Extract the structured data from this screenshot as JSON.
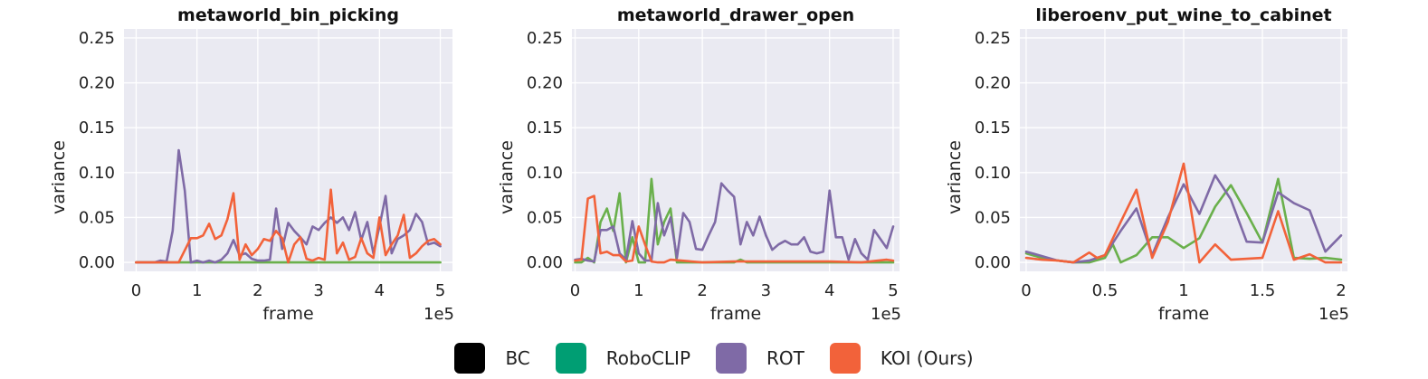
{
  "colors": {
    "BC": "#000000",
    "RoboCLIP": "#009e73",
    "ROT": "#7f6aa6",
    "KOI (Ours)": "#f2623a"
  },
  "legend": {
    "items": [
      {
        "name": "BC",
        "color": "#000000"
      },
      {
        "name": "RoboCLIP",
        "color": "#009e73"
      },
      {
        "name": "ROT",
        "color": "#7f6aa6"
      },
      {
        "name": "KOI (Ours)",
        "color": "#f2623a"
      }
    ]
  },
  "chart_data": [
    {
      "type": "line",
      "title": "metaworld_bin_picking",
      "xlabel": "frame",
      "ylabel": "variance",
      "x_multiplier": "1e5",
      "xlim": [
        -0.2,
        5.2
      ],
      "ylim": [
        -0.01,
        0.26
      ],
      "xticks": [
        0,
        1,
        2,
        3,
        4,
        5
      ],
      "xtick_labels": [
        "0",
        "1",
        "2",
        "3",
        "4",
        "5"
      ],
      "yticks": [
        0.0,
        0.05,
        0.1,
        0.15,
        0.2,
        0.25
      ],
      "ytick_labels": [
        "0.00",
        "0.05",
        "0.10",
        "0.15",
        "0.20",
        "0.25"
      ],
      "grid": true,
      "series": [
        {
          "name": "RoboCLIP",
          "color": "#6ab04c",
          "x": [
            0,
            1,
            2,
            3,
            4,
            5
          ],
          "y": [
            0,
            0,
            0,
            0,
            0,
            0
          ]
        },
        {
          "name": "ROT",
          "color": "#7f6aa6",
          "x": [
            0,
            0.3,
            0.4,
            0.5,
            0.6,
            0.7,
            0.8,
            0.9,
            1.0,
            1.1,
            1.2,
            1.3,
            1.4,
            1.5,
            1.6,
            1.7,
            1.8,
            1.9,
            2.0,
            2.1,
            2.2,
            2.3,
            2.4,
            2.5,
            2.6,
            2.7,
            2.8,
            2.9,
            3.0,
            3.1,
            3.2,
            3.3,
            3.4,
            3.5,
            3.6,
            3.7,
            3.8,
            3.9,
            4.0,
            4.1,
            4.2,
            4.3,
            4.4,
            4.5,
            4.6,
            4.7,
            4.8,
            4.9,
            5.0
          ],
          "y": [
            0,
            0,
            0.002,
            0.001,
            0.035,
            0.125,
            0.08,
            0,
            0.002,
            0,
            0.002,
            0,
            0.003,
            0.01,
            0.025,
            0.008,
            0.01,
            0.004,
            0.002,
            0.002,
            0.003,
            0.06,
            0.015,
            0.044,
            0.035,
            0.028,
            0.02,
            0.04,
            0.036,
            0.044,
            0.05,
            0.044,
            0.05,
            0.036,
            0.056,
            0.025,
            0.045,
            0.01,
            0.04,
            0.074,
            0.01,
            0.026,
            0.03,
            0.036,
            0.054,
            0.045,
            0.02,
            0.022,
            0.018
          ]
        },
        {
          "name": "KOI (Ours)",
          "color": "#f2623a",
          "x": [
            0,
            0.5,
            0.7,
            0.9,
            1.0,
            1.1,
            1.2,
            1.3,
            1.4,
            1.5,
            1.6,
            1.7,
            1.8,
            1.9,
            2.0,
            2.1,
            2.2,
            2.3,
            2.4,
            2.5,
            2.6,
            2.7,
            2.8,
            2.9,
            3.0,
            3.1,
            3.2,
            3.3,
            3.4,
            3.5,
            3.6,
            3.7,
            3.8,
            3.9,
            4.0,
            4.1,
            4.2,
            4.3,
            4.4,
            4.5,
            4.6,
            4.7,
            4.8,
            4.9,
            5.0
          ],
          "y": [
            0,
            0,
            0,
            0.027,
            0.027,
            0.03,
            0.043,
            0.026,
            0.03,
            0.048,
            0.077,
            0.003,
            0.02,
            0.008,
            0.015,
            0.026,
            0.024,
            0.035,
            0.027,
            0,
            0.02,
            0.028,
            0.004,
            0.002,
            0.005,
            0.003,
            0.081,
            0.01,
            0.022,
            0.003,
            0.006,
            0.027,
            0.01,
            0.005,
            0.05,
            0.008,
            0.02,
            0.03,
            0.053,
            0.005,
            0.01,
            0.018,
            0.024,
            0.026,
            0.02
          ]
        }
      ]
    },
    {
      "type": "line",
      "title": "metaworld_drawer_open",
      "xlabel": "frame",
      "ylabel": "variance",
      "x_multiplier": "1e5",
      "xlim": [
        -0.05,
        5.1
      ],
      "ylim": [
        -0.01,
        0.26
      ],
      "xticks": [
        0,
        1,
        2,
        3,
        4,
        5
      ],
      "xtick_labels": [
        "0",
        "1",
        "2",
        "3",
        "4",
        "5"
      ],
      "yticks": [
        0.0,
        0.05,
        0.1,
        0.15,
        0.2,
        0.25
      ],
      "ytick_labels": [
        "0.00",
        "0.05",
        "0.10",
        "0.15",
        "0.20",
        "0.25"
      ],
      "grid": true,
      "series": [
        {
          "name": "RoboCLIP",
          "color": "#6ab04c",
          "x": [
            0,
            0.1,
            0.2,
            0.3,
            0.4,
            0.5,
            0.6,
            0.7,
            0.8,
            0.9,
            1.0,
            1.1,
            1.2,
            1.3,
            1.4,
            1.5,
            1.6,
            1.7,
            1.8,
            1.9,
            2.0,
            2.5,
            2.6,
            2.7,
            3.0,
            3.5,
            4.0,
            4.5,
            5.0
          ],
          "y": [
            0,
            0,
            0.005,
            0,
            0.045,
            0.06,
            0.035,
            0.077,
            0,
            0.028,
            0,
            0,
            0.093,
            0.02,
            0.045,
            0.06,
            0,
            0,
            0,
            0,
            0,
            0,
            0.003,
            0,
            0,
            0,
            0,
            0,
            0
          ]
        },
        {
          "name": "ROT",
          "color": "#7f6aa6",
          "x": [
            0,
            0.1,
            0.2,
            0.3,
            0.4,
            0.5,
            0.6,
            0.7,
            0.8,
            0.9,
            1.0,
            1.1,
            1.2,
            1.3,
            1.4,
            1.5,
            1.6,
            1.7,
            1.8,
            1.9,
            2.0,
            2.1,
            2.2,
            2.3,
            2.4,
            2.5,
            2.6,
            2.7,
            2.8,
            2.9,
            3.0,
            3.1,
            3.2,
            3.3,
            3.4,
            3.5,
            3.6,
            3.7,
            3.8,
            3.9,
            4.0,
            4.1,
            4.2,
            4.3,
            4.4,
            4.5,
            4.6,
            4.7,
            4.8,
            4.9,
            5.0
          ],
          "y": [
            0.003,
            0.004,
            0.002,
            0.001,
            0.036,
            0.036,
            0.04,
            0.01,
            0.003,
            0.046,
            0.01,
            0.002,
            0.002,
            0.066,
            0.03,
            0.05,
            0.005,
            0.055,
            0.045,
            0.015,
            0.014,
            0.03,
            0.045,
            0.088,
            0.08,
            0.073,
            0.02,
            0.045,
            0.03,
            0.051,
            0.03,
            0.014,
            0.02,
            0.024,
            0.02,
            0.02,
            0.028,
            0.012,
            0.01,
            0.012,
            0.08,
            0.028,
            0.028,
            0.003,
            0.026,
            0.01,
            0.003,
            0.036,
            0.026,
            0.016,
            0.04
          ]
        },
        {
          "name": "KOI (Ours)",
          "color": "#f2623a",
          "x": [
            0,
            0.1,
            0.2,
            0.3,
            0.4,
            0.5,
            0.6,
            0.7,
            0.8,
            0.9,
            1.0,
            1.1,
            1.2,
            1.3,
            1.4,
            1.5,
            2.0,
            2.5,
            3.0,
            3.5,
            4.0,
            4.5,
            4.9,
            5.0
          ],
          "y": [
            0.002,
            0.003,
            0.071,
            0.074,
            0.01,
            0.012,
            0.008,
            0.008,
            0.001,
            0.002,
            0.04,
            0.02,
            0.001,
            0,
            0,
            0.003,
            0,
            0.001,
            0.001,
            0.001,
            0.001,
            0,
            0.003,
            0.002
          ]
        }
      ]
    },
    {
      "type": "line",
      "title": "liberoenv_put_wine_to_cabinet",
      "xlabel": "frame",
      "ylabel": "variance",
      "x_multiplier": "1e5",
      "xlim": [
        -0.04,
        2.04
      ],
      "ylim": [
        -0.01,
        0.26
      ],
      "xticks": [
        0,
        0.5,
        1,
        1.5,
        2
      ],
      "xtick_labels": [
        "0",
        "0.5",
        "1",
        "1.5",
        "2"
      ],
      "yticks": [
        0.0,
        0.05,
        0.1,
        0.15,
        0.2,
        0.25
      ],
      "ytick_labels": [
        "0.00",
        "0.05",
        "0.10",
        "0.15",
        "0.20",
        "0.25"
      ],
      "grid": true,
      "series": [
        {
          "name": "RoboCLIP",
          "color": "#6ab04c",
          "x": [
            0,
            0.1,
            0.2,
            0.3,
            0.4,
            0.5,
            0.55,
            0.6,
            0.7,
            0.8,
            0.9,
            1.0,
            1.1,
            1.2,
            1.3,
            1.4,
            1.5,
            1.6,
            1.7,
            1.8,
            1.9,
            2.0
          ],
          "y": [
            0.01,
            0.005,
            0.002,
            0,
            0,
            0.005,
            0.02,
            0,
            0.008,
            0.028,
            0.028,
            0.016,
            0.027,
            0.062,
            0.086,
            0.055,
            0.022,
            0.093,
            0.005,
            0.004,
            0.005,
            0.003
          ]
        },
        {
          "name": "ROT",
          "color": "#7f6aa6",
          "x": [
            0,
            0.1,
            0.2,
            0.3,
            0.4,
            0.5,
            0.6,
            0.7,
            0.8,
            0.9,
            1.0,
            1.1,
            1.2,
            1.3,
            1.4,
            1.5,
            1.6,
            1.7,
            1.8,
            1.9,
            2.0
          ],
          "y": [
            0.012,
            0.007,
            0.002,
            0,
            0.002,
            0.008,
            0.035,
            0.06,
            0.008,
            0.05,
            0.087,
            0.054,
            0.097,
            0.07,
            0.023,
            0.022,
            0.078,
            0.066,
            0.058,
            0.012,
            0.03
          ]
        },
        {
          "name": "KOI (Ours)",
          "color": "#f2623a",
          "x": [
            0,
            0.1,
            0.2,
            0.3,
            0.4,
            0.45,
            0.5,
            0.6,
            0.7,
            0.8,
            0.9,
            1.0,
            1.1,
            1.2,
            1.3,
            1.4,
            1.5,
            1.6,
            1.7,
            1.8,
            1.9,
            2.0
          ],
          "y": [
            0.005,
            0.003,
            0.002,
            0,
            0.011,
            0.005,
            0.008,
            0.045,
            0.081,
            0.005,
            0.045,
            0.11,
            0,
            0.02,
            0.003,
            0.004,
            0.005,
            0.057,
            0.003,
            0.009,
            0,
            0
          ]
        }
      ]
    }
  ]
}
